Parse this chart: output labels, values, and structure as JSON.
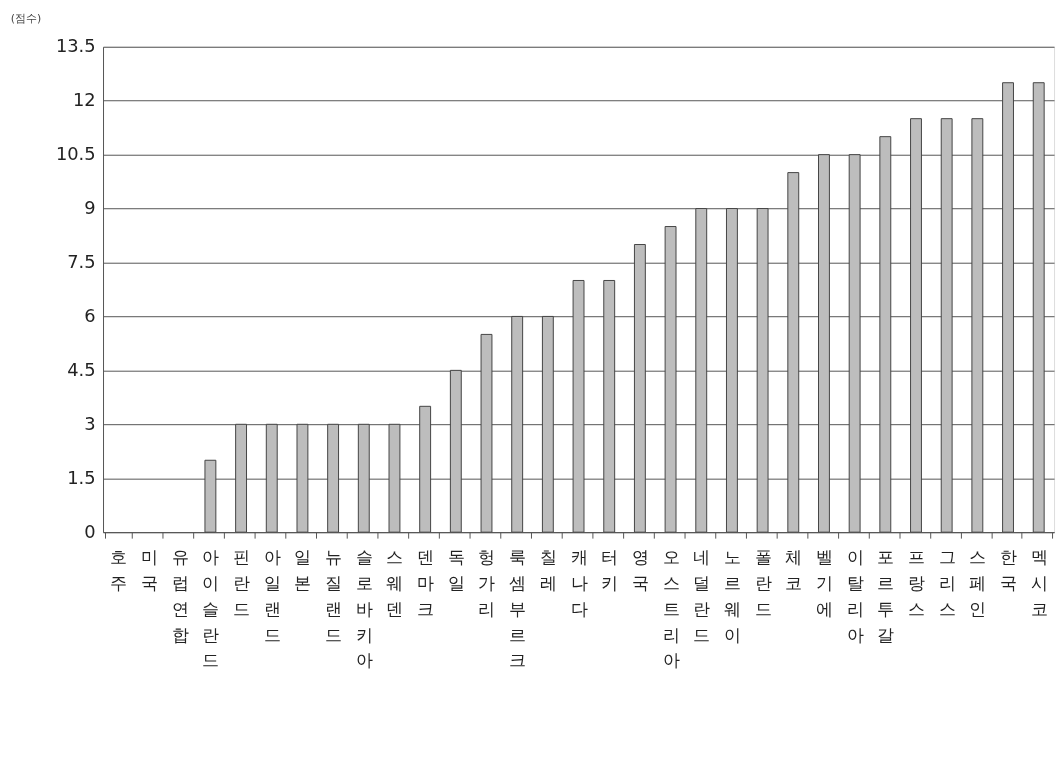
{
  "chart_data": {
    "type": "bar",
    "ylabel": "(점수)",
    "categories": [
      "호주",
      "미국",
      "유럽연합",
      "아이슬란드",
      "핀란드",
      "아일랜드",
      "일본",
      "뉴질랜드",
      "슬로바키아",
      "스웨덴",
      "덴마크",
      "독일",
      "헝가리",
      "룩셈부르크",
      "칠레",
      "캐나다",
      "터키",
      "영국",
      "오스트리아",
      "네덜란드",
      "노르웨이",
      "폴란드",
      "체코",
      "벨기에",
      "이탈리아",
      "포르투갈",
      "프랑스",
      "그리스",
      "스페인",
      "한국",
      "멕시코"
    ],
    "values": [
      0,
      0,
      0,
      2,
      3,
      3,
      3,
      3,
      3,
      3,
      3.5,
      4.5,
      5.5,
      6,
      6,
      7,
      7,
      8,
      8.5,
      9,
      9,
      9,
      10,
      10.5,
      10.5,
      11,
      11.5,
      11.5,
      11.5,
      12.5,
      12.5
    ],
    "color": "#bdbdbd",
    "ylim": [
      0,
      13.5
    ],
    "yticks": [
      0,
      1.5,
      3,
      4.5,
      6,
      7.5,
      9,
      10.5,
      12,
      13.5
    ],
    "grid": "y"
  }
}
